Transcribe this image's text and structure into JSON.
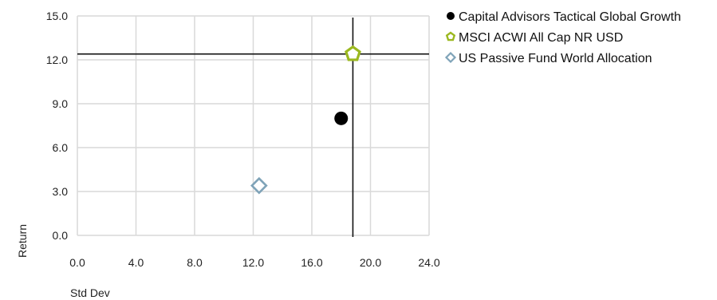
{
  "chart_data": {
    "type": "scatter",
    "xlabel": "Std Dev",
    "ylabel": "Return",
    "xlim": [
      0,
      24
    ],
    "ylim": [
      0,
      15
    ],
    "xticks": [
      0,
      4,
      8,
      12,
      16,
      20,
      24
    ],
    "yticks": [
      0,
      3,
      6,
      9,
      12,
      15
    ],
    "tick_format": "one-decimal",
    "grid": true,
    "legend_position": "right",
    "reference_lines": {
      "x": 18.8,
      "y": 12.4
    },
    "series": [
      {
        "name": "Capital Advisors Tactical Global Growth",
        "marker": "circle",
        "color": "#000000",
        "x": 18.0,
        "y": 8.0
      },
      {
        "name": "MSCI ACWI All Cap NR USD",
        "marker": "pentagon",
        "color": "#9bb81f",
        "x": 18.8,
        "y": 12.4
      },
      {
        "name": "US Passive Fund World Allocation",
        "marker": "diamond",
        "color": "#7fa3b8",
        "x": 12.4,
        "y": 3.4
      }
    ]
  }
}
